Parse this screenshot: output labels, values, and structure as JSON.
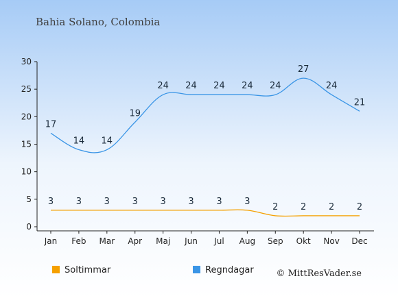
{
  "chart_data": {
    "type": "line",
    "title": "Bahia Solano, Colombia",
    "categories": [
      "Jan",
      "Feb",
      "Mar",
      "Apr",
      "Maj",
      "Jun",
      "Jul",
      "Aug",
      "Sep",
      "Okt",
      "Nov",
      "Dec"
    ],
    "ylim": [
      0,
      30
    ],
    "yticks": [
      0,
      5,
      10,
      15,
      20,
      25,
      30
    ],
    "series": [
      {
        "name": "Soltimmar",
        "color": "#f5a000",
        "values": [
          3,
          3,
          3,
          3,
          3,
          3,
          3,
          3,
          2,
          2,
          2,
          2
        ]
      },
      {
        "name": "Regndagar",
        "color": "#3a95e6",
        "values": [
          17,
          14,
          14,
          19,
          24,
          24,
          24,
          24,
          24,
          27,
          24,
          21
        ]
      }
    ],
    "legend_position": "bottom-left",
    "grid": false
  },
  "credit": "© MittResVader.se",
  "colors": {
    "background_top": "#a9cdf7",
    "background_bottom": "#ffffff",
    "axis": "#222222"
  }
}
